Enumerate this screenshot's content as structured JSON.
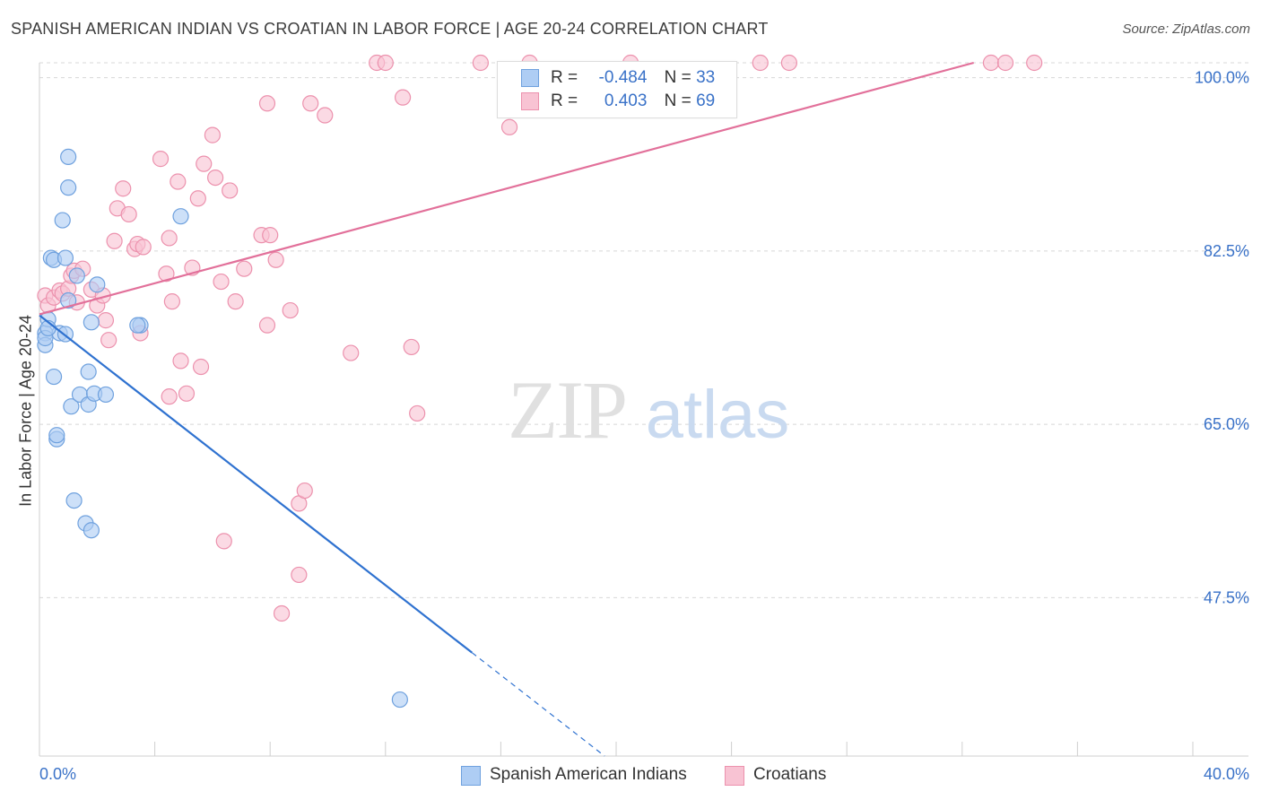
{
  "header": {
    "title": "SPANISH AMERICAN INDIAN VS CROATIAN IN LABOR FORCE | AGE 20-24 CORRELATION CHART",
    "source": "Source: ZipAtlas.com"
  },
  "watermark": {
    "zip": "ZIP",
    "atlas": "atlas"
  },
  "legend": {
    "r_label": "R =",
    "n_label": "N =",
    "series": [
      {
        "name": "Spanish American Indians",
        "r": "-0.484",
        "n": "33"
      },
      {
        "name": "Croatians",
        "r": "0.403",
        "n": "69"
      }
    ]
  },
  "colors": {
    "blue_fill": "#aecdf4",
    "blue_stroke": "#6fa1de",
    "blue_line": "#2f72d0",
    "pink_fill": "#f8c3d3",
    "pink_stroke": "#ec91ad",
    "pink_line": "#e2709a",
    "axis_label": "#3a72c8",
    "grid": "#d8d8d8"
  },
  "chart_data": {
    "type": "scatter",
    "title": "SPANISH AMERICAN INDIAN VS CROATIAN IN LABOR FORCE | AGE 20-24 CORRELATION CHART",
    "xlabel": "",
    "ylabel": "In Labor Force | Age 20-24",
    "xlim": [
      0,
      40
    ],
    "ylim": [
      31.5,
      101.5
    ],
    "x_tick_labels": [
      "0.0%",
      "40.0%"
    ],
    "y_ticks": [
      100.0,
      82.5,
      65.0,
      47.5
    ],
    "y_tick_labels": [
      "100.0%",
      "82.5%",
      "65.0%",
      "47.5%"
    ],
    "grid": true,
    "legend_position": "top-center",
    "series": [
      {
        "name": "Spanish American Indians",
        "color": "blue",
        "trend": {
          "x0": 0.0,
          "y0": 76.0,
          "x_solid_end": 15.0,
          "x1": 19.6
        },
        "points": [
          [
            0.2,
            74.2
          ],
          [
            0.2,
            73.0
          ],
          [
            0.3,
            75.6
          ],
          [
            0.4,
            81.8
          ],
          [
            0.5,
            81.6
          ],
          [
            0.5,
            69.8
          ],
          [
            0.6,
            63.5
          ],
          [
            0.6,
            63.9
          ],
          [
            0.7,
            74.2
          ],
          [
            0.8,
            85.6
          ],
          [
            0.9,
            74.1
          ],
          [
            0.9,
            81.8
          ],
          [
            1.0,
            88.9
          ],
          [
            1.0,
            92.0
          ],
          [
            1.0,
            77.5
          ],
          [
            1.1,
            66.8
          ],
          [
            1.2,
            57.3
          ],
          [
            1.3,
            80.0
          ],
          [
            1.4,
            68.0
          ],
          [
            1.6,
            55.0
          ],
          [
            1.7,
            67.0
          ],
          [
            1.7,
            70.3
          ],
          [
            1.8,
            54.3
          ],
          [
            1.8,
            75.3
          ],
          [
            1.9,
            68.1
          ],
          [
            2.0,
            79.1
          ],
          [
            2.3,
            68.0
          ],
          [
            3.5,
            75.0
          ],
          [
            3.4,
            75.0
          ],
          [
            4.9,
            86.0
          ],
          [
            12.5,
            37.2
          ],
          [
            0.2,
            73.7
          ],
          [
            0.3,
            74.7
          ]
        ]
      },
      {
        "name": "Croatians",
        "color": "pink",
        "trend": {
          "x0": 0.0,
          "y0": 76.1,
          "x1": 32.4,
          "y1": 101.5
        },
        "points": [
          [
            0.2,
            78.0
          ],
          [
            0.3,
            77.0
          ],
          [
            0.5,
            77.8
          ],
          [
            0.7,
            78.5
          ],
          [
            0.8,
            78.2
          ],
          [
            1.0,
            78.7
          ],
          [
            1.1,
            80.0
          ],
          [
            1.2,
            80.5
          ],
          [
            1.3,
            77.3
          ],
          [
            1.5,
            80.7
          ],
          [
            1.8,
            78.6
          ],
          [
            2.0,
            77.0
          ],
          [
            2.2,
            78.0
          ],
          [
            2.3,
            75.5
          ],
          [
            2.4,
            73.5
          ],
          [
            2.6,
            83.5
          ],
          [
            2.7,
            86.8
          ],
          [
            2.9,
            88.8
          ],
          [
            3.1,
            86.2
          ],
          [
            3.3,
            82.7
          ],
          [
            3.4,
            83.2
          ],
          [
            3.5,
            74.2
          ],
          [
            3.6,
            82.9
          ],
          [
            4.2,
            91.8
          ],
          [
            4.4,
            80.2
          ],
          [
            4.5,
            83.8
          ],
          [
            4.5,
            67.8
          ],
          [
            4.6,
            77.4
          ],
          [
            4.8,
            89.5
          ],
          [
            4.9,
            71.4
          ],
          [
            5.1,
            68.1
          ],
          [
            5.3,
            80.8
          ],
          [
            5.5,
            87.8
          ],
          [
            5.6,
            70.8
          ],
          [
            5.7,
            91.3
          ],
          [
            6.0,
            94.2
          ],
          [
            6.1,
            89.9
          ],
          [
            6.3,
            79.4
          ],
          [
            6.4,
            53.2
          ],
          [
            6.6,
            88.6
          ],
          [
            6.8,
            77.4
          ],
          [
            7.1,
            80.7
          ],
          [
            7.7,
            84.1
          ],
          [
            7.9,
            75.0
          ],
          [
            7.9,
            97.4
          ],
          [
            8.0,
            84.1
          ],
          [
            8.2,
            81.6
          ],
          [
            8.4,
            45.9
          ],
          [
            8.7,
            76.5
          ],
          [
            9.0,
            49.8
          ],
          [
            9.0,
            57.0
          ],
          [
            9.2,
            58.3
          ],
          [
            9.4,
            97.4
          ],
          [
            9.9,
            96.2
          ],
          [
            10.8,
            72.2
          ],
          [
            11.7,
            101.5
          ],
          [
            12.0,
            101.5
          ],
          [
            12.6,
            98.0
          ],
          [
            12.9,
            72.8
          ],
          [
            13.1,
            66.1
          ],
          [
            15.3,
            101.5
          ],
          [
            16.3,
            95.0
          ],
          [
            17.0,
            101.5
          ],
          [
            20.5,
            101.5
          ],
          [
            25.0,
            101.5
          ],
          [
            26.0,
            101.5
          ],
          [
            33.0,
            101.5
          ],
          [
            33.5,
            101.5
          ],
          [
            34.5,
            101.5
          ]
        ]
      }
    ]
  }
}
